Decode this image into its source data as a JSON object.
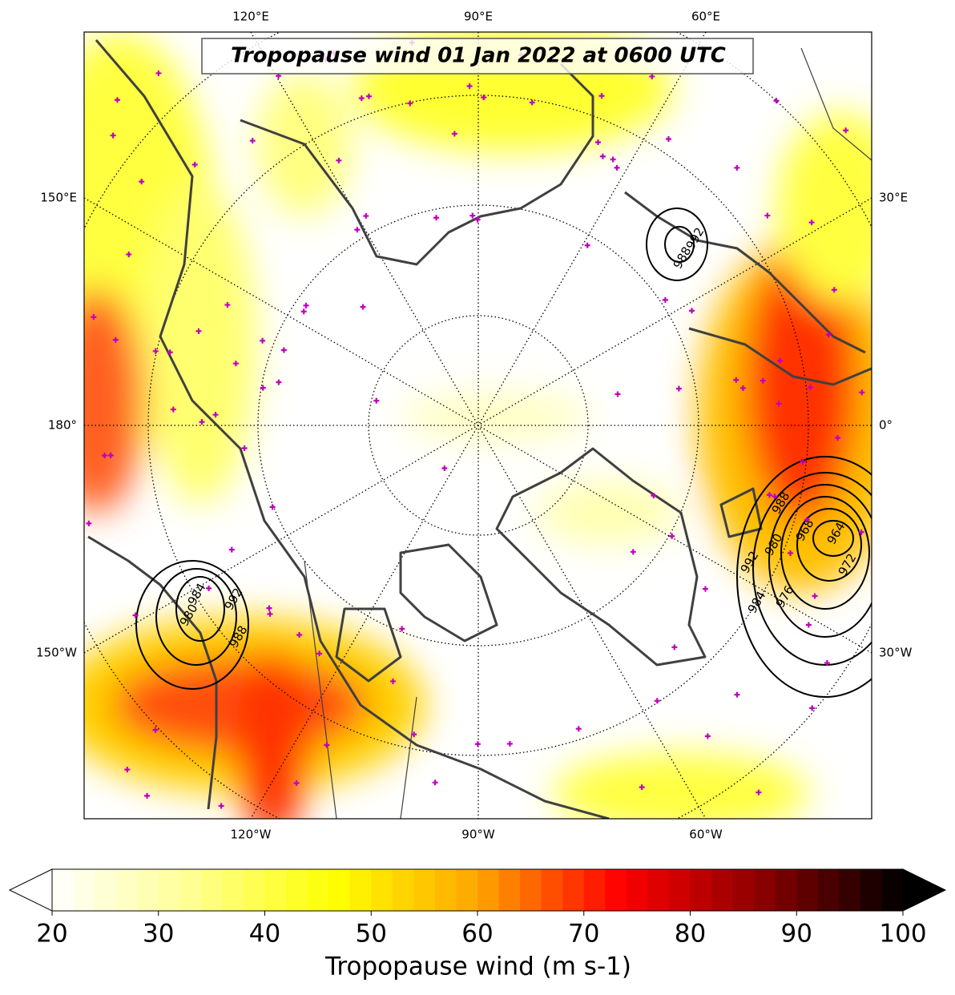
{
  "title": "Tropopause wind 01 Jan 2022 at 0600 UTC",
  "map": {
    "lon_labels_top": [
      "120°E",
      "90°E",
      "60°E"
    ],
    "lon_labels_bottom": [
      "120°W",
      "90°W",
      "60°W"
    ],
    "lon_labels_left": [
      "150°E",
      "180°",
      "150°W"
    ],
    "lon_labels_right": [
      "30°E",
      "0°",
      "30°W"
    ],
    "contour_labels": [
      988,
      992,
      980,
      992,
      984,
      988,
      992,
      988,
      968,
      964,
      980,
      972,
      976,
      984
    ]
  },
  "colorbar": {
    "label": "Tropopause wind (m s-1)",
    "lim": [
      20,
      100
    ],
    "ticks": [
      20,
      30,
      40,
      50,
      60,
      70,
      80,
      90,
      100
    ],
    "colors": [
      "#ffffff",
      "#ffff90",
      "#ffff00",
      "#ffa500",
      "#ff0000",
      "#8b0000",
      "#000000"
    ],
    "extend": "both"
  }
}
